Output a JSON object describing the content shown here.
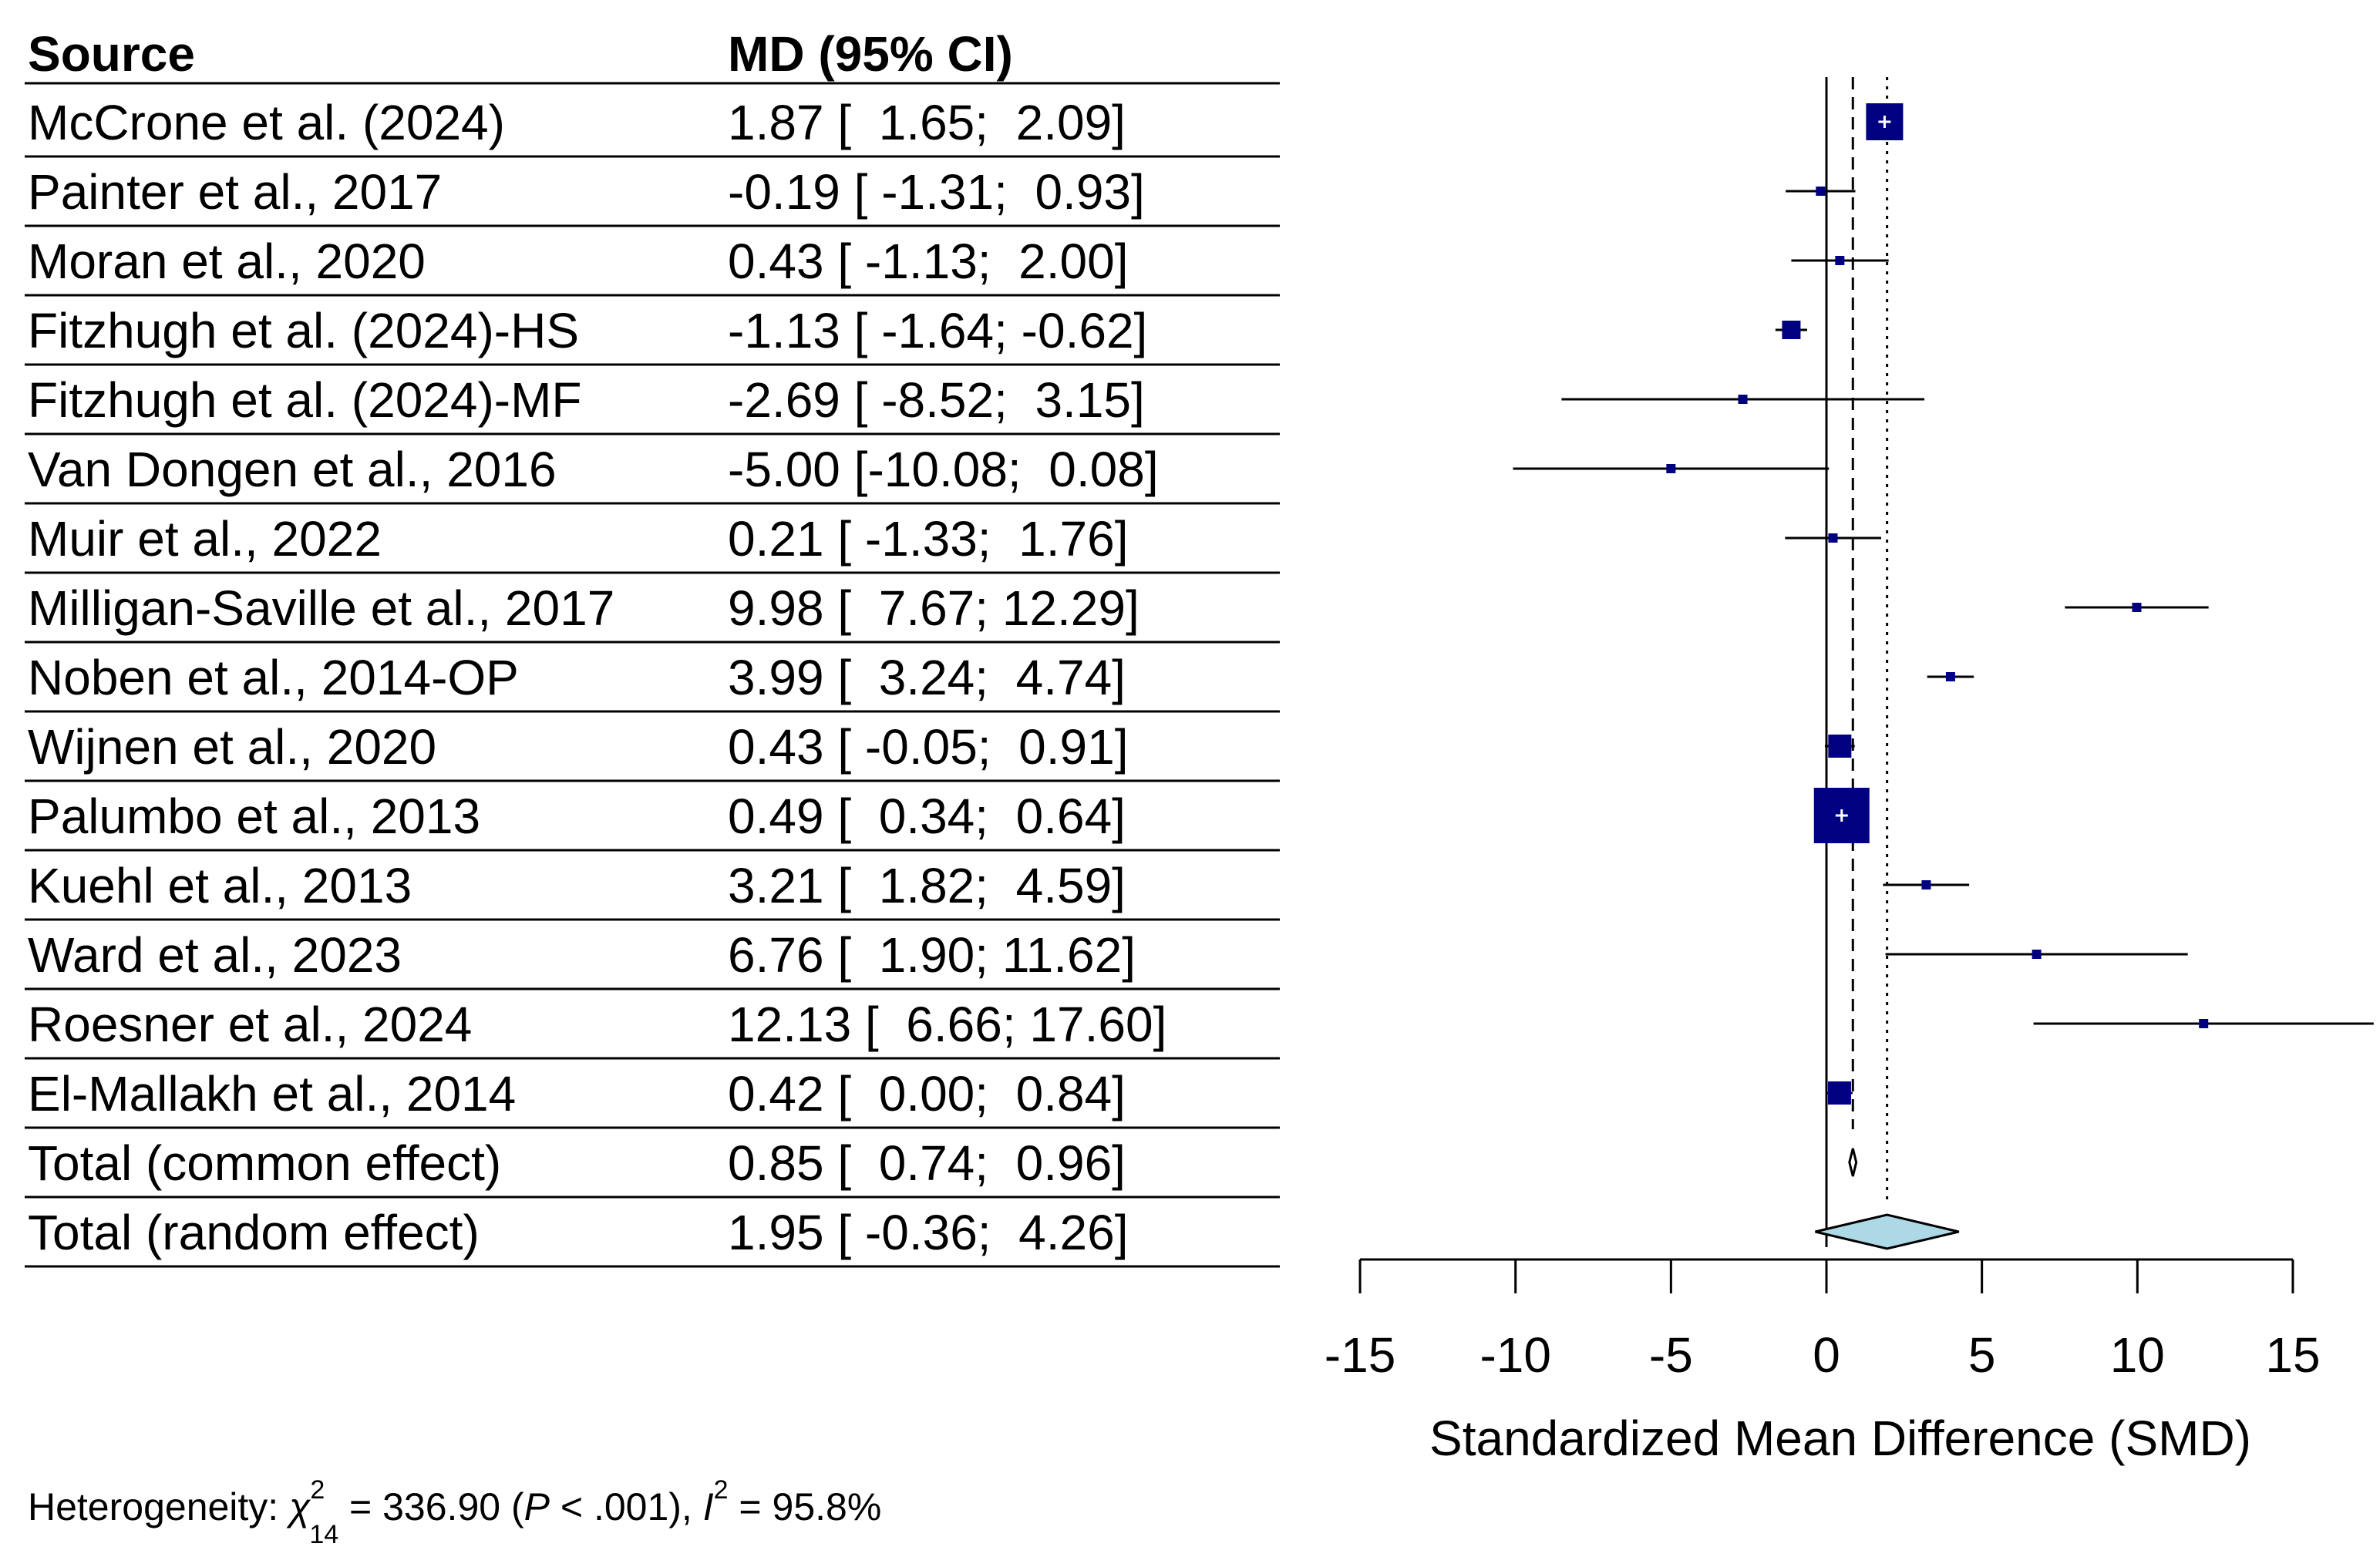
{
  "chart_data": {
    "type": "forest",
    "columns": {
      "source": "Source",
      "estimate": "MD (95% CI)"
    },
    "studies": [
      {
        "name": "McCrone et al. (2024)",
        "md": 1.87,
        "lo": 1.65,
        "hi": 2.09,
        "ci_text": "1.87 [  1.65;  2.09]",
        "weight_marker": "large"
      },
      {
        "name": "Painter et al., 2017",
        "md": -0.19,
        "lo": -1.31,
        "hi": 0.93,
        "ci_text": "-0.19 [ -1.31;  0.93]",
        "weight_marker": "tiny"
      },
      {
        "name": "Moran et al., 2020",
        "md": 0.43,
        "lo": -1.13,
        "hi": 2.0,
        "ci_text": "0.43 [ -1.13;  2.00]",
        "weight_marker": "tiny"
      },
      {
        "name": "Fitzhugh et al. (2024)-HS",
        "md": -1.13,
        "lo": -1.64,
        "hi": -0.62,
        "ci_text": "-1.13 [ -1.64; -0.62]",
        "weight_marker": "small"
      },
      {
        "name": "Fitzhugh et al. (2024)-MF",
        "md": -2.69,
        "lo": -8.52,
        "hi": 3.15,
        "ci_text": "-2.69 [ -8.52;  3.15]",
        "weight_marker": "tiny"
      },
      {
        "name": "Van Dongen et al., 2016",
        "md": -5.0,
        "lo": -10.08,
        "hi": 0.08,
        "ci_text": "-5.00 [-10.08;  0.08]",
        "weight_marker": "tiny"
      },
      {
        "name": "Muir et al., 2022",
        "md": 0.21,
        "lo": -1.33,
        "hi": 1.76,
        "ci_text": "0.21 [ -1.33;  1.76]",
        "weight_marker": "tiny"
      },
      {
        "name": "Milligan-Saville et al., 2017",
        "md": 9.98,
        "lo": 7.67,
        "hi": 12.29,
        "ci_text": "9.98 [  7.67; 12.29]",
        "weight_marker": "tiny"
      },
      {
        "name": "Noben et al., 2014-OP",
        "md": 3.99,
        "lo": 3.24,
        "hi": 4.74,
        "ci_text": "3.99 [  3.24;  4.74]",
        "weight_marker": "tiny"
      },
      {
        "name": "Wijnen et al., 2020",
        "md": 0.43,
        "lo": -0.05,
        "hi": 0.91,
        "ci_text": "0.43 [ -0.05;  0.91]",
        "weight_marker": "medium"
      },
      {
        "name": "Palumbo et al., 2013",
        "md": 0.49,
        "lo": 0.34,
        "hi": 0.64,
        "ci_text": "0.49 [  0.34;  0.64]",
        "weight_marker": "largest"
      },
      {
        "name": "Kuehl et al., 2013",
        "md": 3.21,
        "lo": 1.82,
        "hi": 4.59,
        "ci_text": "3.21 [  1.82;  4.59]",
        "weight_marker": "tiny"
      },
      {
        "name": "Ward et al., 2023",
        "md": 6.76,
        "lo": 1.9,
        "hi": 11.62,
        "ci_text": "6.76 [  1.90; 11.62]",
        "weight_marker": "tiny"
      },
      {
        "name": "Roesner et al., 2024",
        "md": 12.13,
        "lo": 6.66,
        "hi": 17.6,
        "ci_text": "12.13 [  6.66; 17.60]",
        "weight_marker": "tiny"
      },
      {
        "name": "El-Mallakh et al., 2014",
        "md": 0.42,
        "lo": 0.0,
        "hi": 0.84,
        "ci_text": "0.42 [  0.00;  0.84]",
        "weight_marker": "medium"
      }
    ],
    "pooled": [
      {
        "name": "Total (common effect)",
        "md": 0.85,
        "lo": 0.74,
        "hi": 0.96,
        "ci_text": "0.85 [  0.74;  0.96]",
        "style": "outline"
      },
      {
        "name": "Total (random effect)",
        "md": 1.95,
        "lo": -0.36,
        "hi": 4.26,
        "ci_text": "1.95 [ -0.36;  4.26]",
        "style": "filled"
      }
    ],
    "xaxis": {
      "label": "Standardized Mean Difference (SMD)",
      "ticks": [
        -15,
        -10,
        -5,
        0,
        5,
        10,
        15
      ],
      "range": [
        -15,
        15
      ]
    },
    "reference_lines": {
      "null": 0,
      "common_effect": 0.85,
      "random_effect": 1.95
    },
    "heterogeneity": {
      "prefix": "Heterogeneity: ",
      "chi_symbol": "χ",
      "chi_sup": "2",
      "chi_sub": "14",
      "middle": " = 336.90 (",
      "p_symbol": "P",
      "p_text": " < .001), ",
      "i_symbol": "I",
      "i_sup": "2",
      "i_text": " = 95.8%"
    },
    "colors": {
      "square": "#000080",
      "diamond": "#add8e6",
      "line": "#000000"
    }
  }
}
